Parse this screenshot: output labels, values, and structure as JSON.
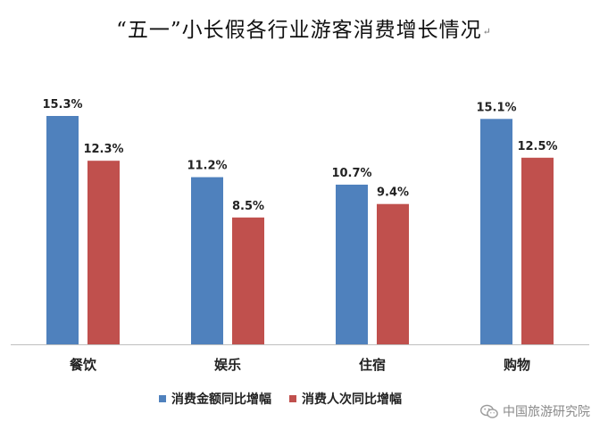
{
  "title": "“五一”小长假各行业游客消费增长情况",
  "title_mark": "↵",
  "watermark": {
    "text": "中国旅游研究院",
    "icon": "wechat-icon"
  },
  "colors": {
    "series_spend": "#4f81bd",
    "series_visits": "#c0504d",
    "axis": "#bfbfbf"
  },
  "chart_data": {
    "type": "bar",
    "title": "“五一”小长假各行业游客消费增长情况",
    "categories": [
      "餐饮",
      "娱乐",
      "住宿",
      "购物"
    ],
    "series": [
      {
        "name": "消费金额同比增幅",
        "values": [
          15.3,
          11.2,
          10.7,
          15.1
        ],
        "labels": [
          "15.3%",
          "11.2%",
          "10.7%",
          "15.1%"
        ],
        "color": "#4f81bd"
      },
      {
        "name": "消费人次同比增幅",
        "values": [
          12.3,
          8.5,
          9.4,
          12.5
        ],
        "labels": [
          "12.3%",
          "8.5%",
          "9.4%",
          "12.5%"
        ],
        "color": "#c0504d"
      }
    ],
    "ylim": [
      0,
      15.3
    ],
    "grid": false,
    "legend_position": "bottom"
  }
}
